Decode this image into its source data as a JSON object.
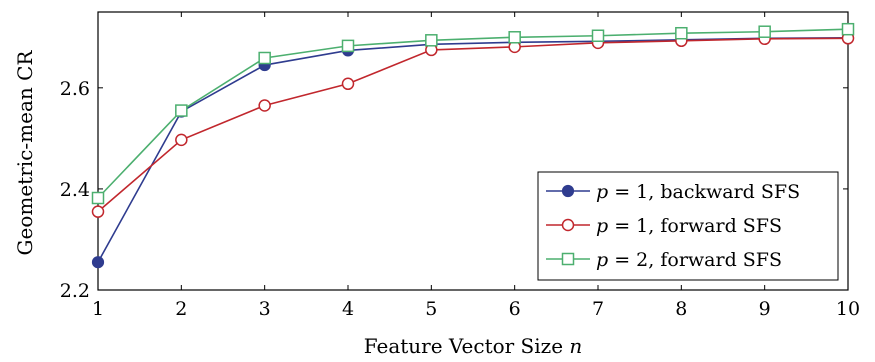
{
  "chart_data": {
    "type": "line",
    "xlabel_prefix": "Feature Vector Size ",
    "xlabel_var": "n",
    "ylabel": "Geometric-mean CR",
    "x": [
      1,
      2,
      3,
      4,
      5,
      6,
      7,
      8,
      9,
      10
    ],
    "xlim": [
      1,
      10
    ],
    "ylim": [
      2.2,
      2.75
    ],
    "yticks": [
      2.2,
      2.4,
      2.6
    ],
    "ytick_labels": [
      "2.2",
      "2.4",
      "2.6"
    ],
    "xtick_labels": [
      "1",
      "2",
      "3",
      "4",
      "5",
      "6",
      "7",
      "8",
      "9",
      "10"
    ],
    "grid": false,
    "legend_position": "bottom-right",
    "series": [
      {
        "p_label": "p",
        "p_value": "= 1,",
        "name_suffix": "backward SFS",
        "color": "#2f3c8f",
        "marker": "filled-circle",
        "values": [
          2.255,
          2.553,
          2.645,
          2.674,
          2.686,
          2.69,
          2.692,
          2.695,
          2.698,
          2.699
        ]
      },
      {
        "p_label": "p",
        "p_value": "= 1,",
        "name_suffix": "forward SFS",
        "color": "#c1272d",
        "marker": "open-circle",
        "values": [
          2.355,
          2.497,
          2.565,
          2.608,
          2.675,
          2.681,
          2.689,
          2.693,
          2.697,
          2.698
        ]
      },
      {
        "p_label": "p",
        "p_value": "= 2,",
        "name_suffix": "forward SFS",
        "color": "#4caf6f",
        "marker": "open-square",
        "values": [
          2.382,
          2.555,
          2.659,
          2.683,
          2.694,
          2.7,
          2.703,
          2.708,
          2.711,
          2.716
        ]
      }
    ]
  }
}
